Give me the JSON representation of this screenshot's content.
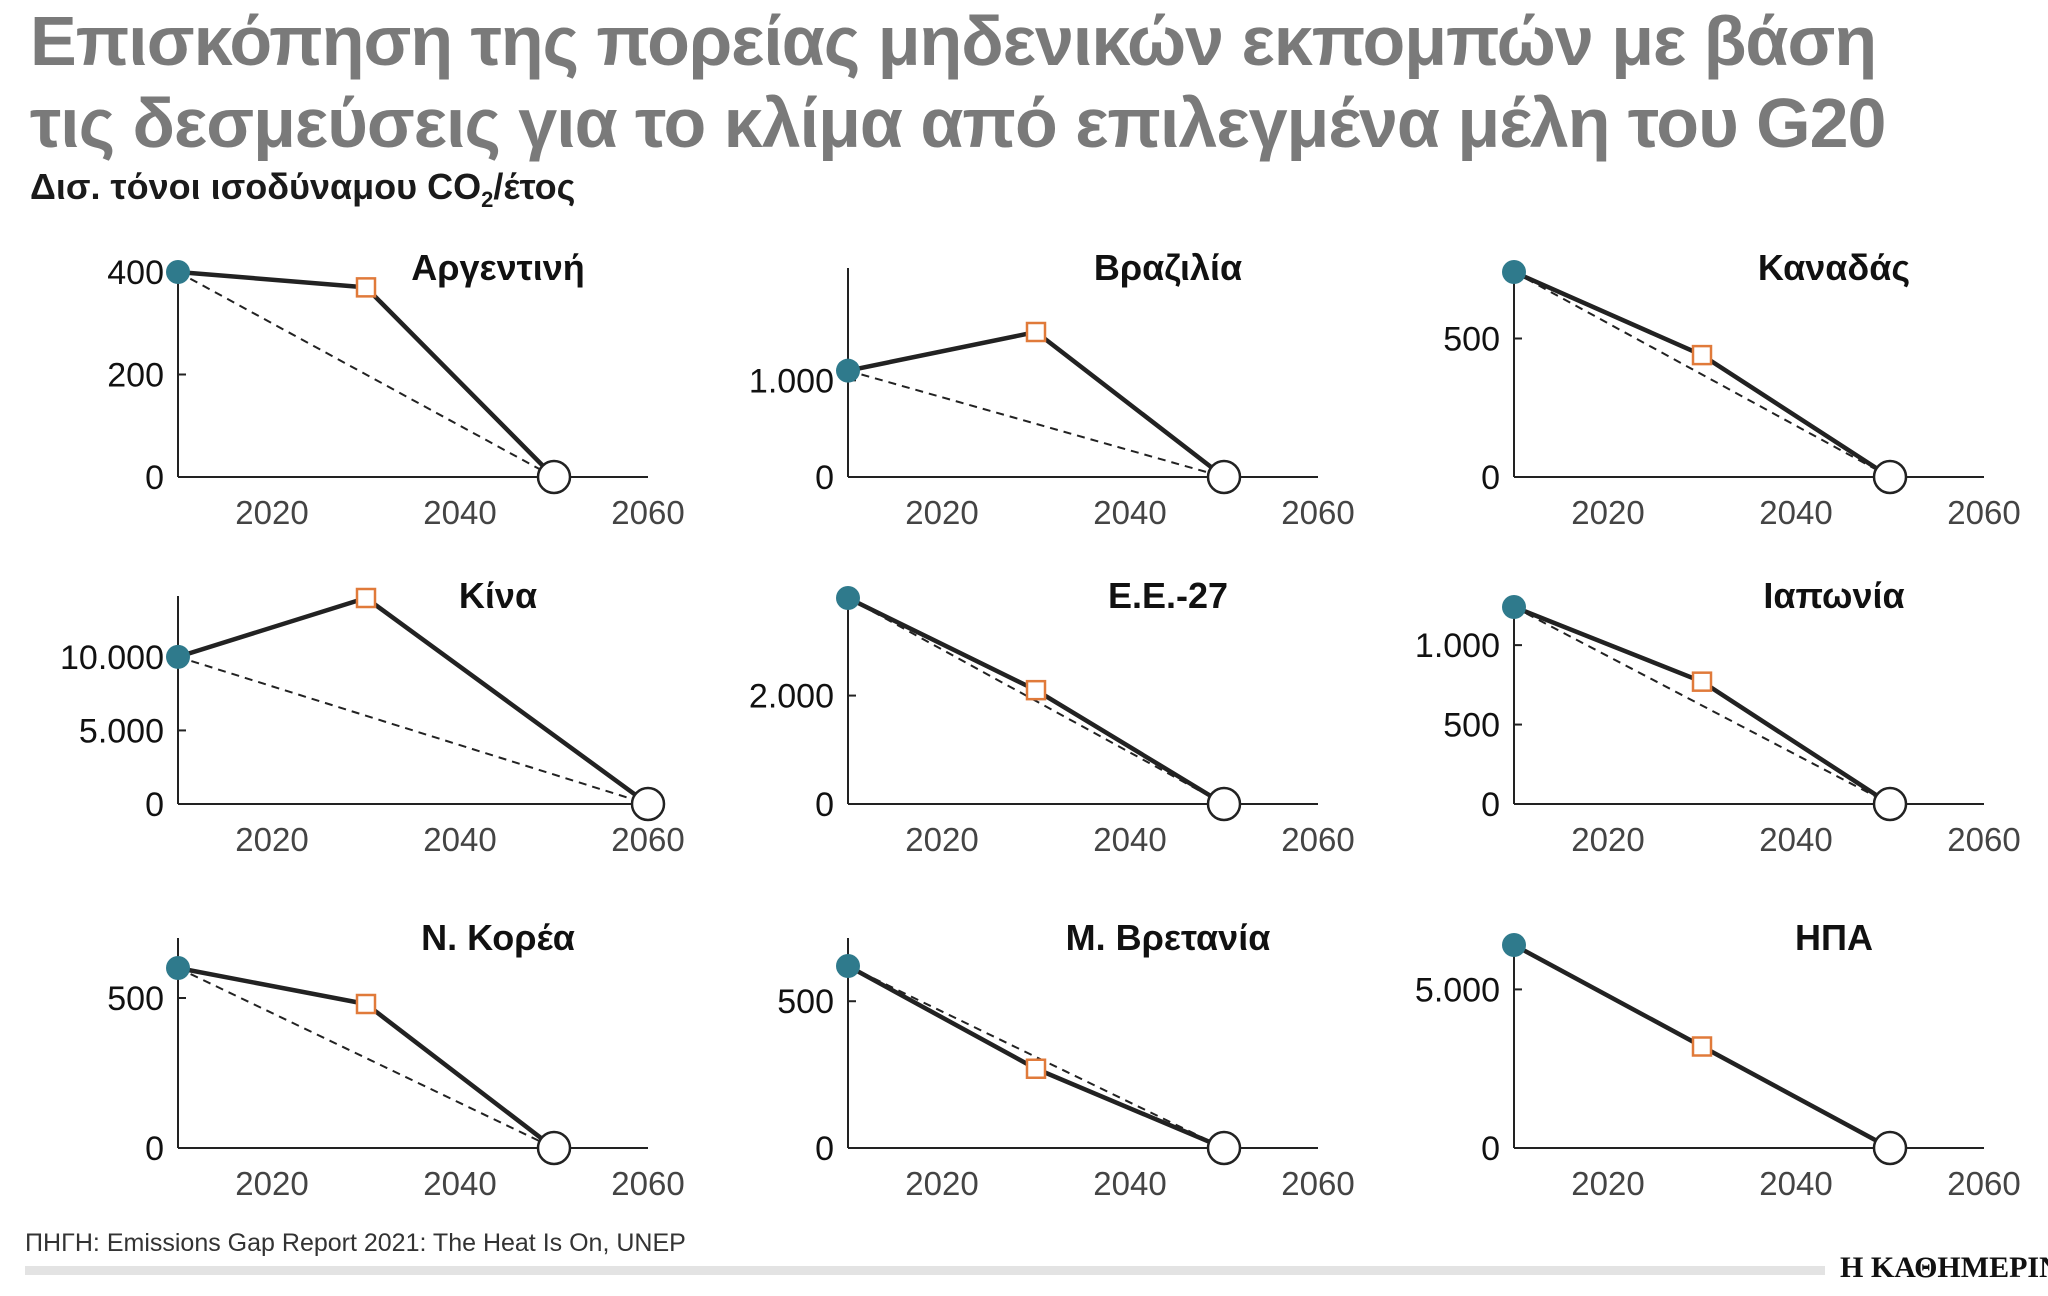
{
  "title_lines": [
    "Επισκόπηση της πορείας μηδενικών εκπομπών με βάση",
    "τις δεσμεύσεις για το κλίμα από επιλεγμένα μέλη του G20"
  ],
  "unit_label": {
    "before": "Δισ. τόνοι ισοδύναμου CO",
    "sub": "2",
    "after": "/έτος"
  },
  "source": "ΠΗΓΗ: Emissions Gap Report 2021: The Heat Is On, UNEP",
  "logo": "Η ΚΑΘΗΜΕΡΙΝΗ",
  "colors": {
    "start_marker": "#2f7a8c",
    "mid_marker": "#e07a3a",
    "line": "#222222",
    "axis": "#222222"
  },
  "chart_data": [
    {
      "type": "line",
      "title": "Αργεντινή",
      "xlim": [
        2010,
        2060
      ],
      "xticks": [
        "2020",
        "2040",
        "2060"
      ],
      "ylim": [
        0,
        400
      ],
      "yticks": [
        {
          "v": 0,
          "label": "0"
        },
        {
          "v": 200,
          "label": "200"
        },
        {
          "v": 400,
          "label": "400"
        }
      ],
      "series": [
        {
          "style": "solid",
          "x": [
            2010,
            2030,
            2050
          ],
          "y": [
            400,
            370,
            0
          ]
        },
        {
          "style": "dashed",
          "x": [
            2010,
            2050
          ],
          "y": [
            400,
            0
          ]
        }
      ]
    },
    {
      "type": "line",
      "title": "Βραζιλία",
      "xlim": [
        2010,
        2060
      ],
      "xticks": [
        "2020",
        "2040",
        "2060"
      ],
      "ylim": [
        0,
        1650
      ],
      "yticks": [
        {
          "v": 0,
          "label": "0"
        },
        {
          "v": 1000,
          "label": "1.000"
        }
      ],
      "series": [
        {
          "style": "solid",
          "x": [
            2010,
            2030,
            2050
          ],
          "y": [
            1100,
            1500,
            0
          ]
        },
        {
          "style": "dashed",
          "x": [
            2010,
            2050
          ],
          "y": [
            1100,
            0
          ]
        }
      ]
    },
    {
      "type": "line",
      "title": "Καναδάς",
      "xlim": [
        2010,
        2060
      ],
      "xticks": [
        "2020",
        "2040",
        "2060"
      ],
      "ylim": [
        0,
        750
      ],
      "yticks": [
        {
          "v": 0,
          "label": "0"
        },
        {
          "v": 500,
          "label": "500"
        }
      ],
      "series": [
        {
          "style": "solid",
          "x": [
            2010,
            2030,
            2050
          ],
          "y": [
            740,
            440,
            0
          ]
        },
        {
          "style": "dashed",
          "x": [
            2010,
            2050
          ],
          "y": [
            740,
            0
          ]
        }
      ]
    },
    {
      "type": "line",
      "title": "Κίνα",
      "xlim": [
        2010,
        2060
      ],
      "xticks": [
        "2020",
        "2040",
        "2060"
      ],
      "ylim": [
        0,
        14500
      ],
      "yticks": [
        {
          "v": 0,
          "label": "0"
        },
        {
          "v": 5000,
          "label": "5.000"
        },
        {
          "v": 10000,
          "label": "10.000"
        }
      ],
      "series": [
        {
          "style": "solid",
          "x": [
            2010,
            2030,
            2060
          ],
          "y": [
            10000,
            14000,
            0
          ]
        },
        {
          "style": "dashed",
          "x": [
            2010,
            2060
          ],
          "y": [
            10000,
            0
          ]
        }
      ]
    },
    {
      "type": "line",
      "title": "Ε.Ε.-27",
      "xlim": [
        2010,
        2060
      ],
      "xticks": [
        "2020",
        "2040",
        "2060"
      ],
      "ylim": [
        0,
        3800
      ],
      "yticks": [
        {
          "v": 0,
          "label": "0"
        },
        {
          "v": 2000,
          "label": "2.000"
        }
      ],
      "series": [
        {
          "style": "solid",
          "x": [
            2010,
            2030,
            2050
          ],
          "y": [
            3800,
            2100,
            0
          ]
        },
        {
          "style": "dashed",
          "x": [
            2010,
            2050
          ],
          "y": [
            3800,
            0
          ]
        }
      ]
    },
    {
      "type": "line",
      "title": "Ιαπωνία",
      "xlim": [
        2010,
        2060
      ],
      "xticks": [
        "2020",
        "2040",
        "2060"
      ],
      "ylim": [
        0,
        1250
      ],
      "yticks": [
        {
          "v": 0,
          "label": "0"
        },
        {
          "v": 500,
          "label": "500"
        },
        {
          "v": 1000,
          "label": "1.000"
        }
      ],
      "series": [
        {
          "style": "solid",
          "x": [
            2010,
            2030,
            2050
          ],
          "y": [
            1240,
            770,
            0
          ]
        },
        {
          "style": "dashed",
          "x": [
            2010,
            2050
          ],
          "y": [
            1240,
            0
          ]
        }
      ]
    },
    {
      "type": "line",
      "title": "Ν. Κορέα",
      "xlim": [
        2010,
        2060
      ],
      "xticks": [
        "2020",
        "2040",
        "2060"
      ],
      "ylim": [
        0,
        700
      ],
      "yticks": [
        {
          "v": 0,
          "label": "0"
        },
        {
          "v": 500,
          "label": "500"
        }
      ],
      "series": [
        {
          "style": "solid",
          "x": [
            2010,
            2030,
            2050
          ],
          "y": [
            600,
            480,
            0
          ]
        },
        {
          "style": "dashed",
          "x": [
            2010,
            2050
          ],
          "y": [
            600,
            0
          ]
        }
      ]
    },
    {
      "type": "line",
      "title": "Μ. Βρετανία",
      "xlim": [
        2010,
        2060
      ],
      "xticks": [
        "2020",
        "2040",
        "2060"
      ],
      "ylim": [
        0,
        700
      ],
      "yticks": [
        {
          "v": 0,
          "label": "0"
        },
        {
          "v": 500,
          "label": "500"
        }
      ],
      "series": [
        {
          "style": "solid",
          "x": [
            2010,
            2030,
            2050
          ],
          "y": [
            620,
            270,
            0
          ]
        },
        {
          "style": "dashed",
          "x": [
            2010,
            2050
          ],
          "y": [
            620,
            0
          ]
        }
      ]
    },
    {
      "type": "line",
      "title": "ΗΠΑ",
      "xlim": [
        2010,
        2060
      ],
      "xticks": [
        "2020",
        "2040",
        "2060"
      ],
      "ylim": [
        0,
        6500
      ],
      "yticks": [
        {
          "v": 0,
          "label": "0"
        },
        {
          "v": 5000,
          "label": "5.000"
        }
      ],
      "series": [
        {
          "style": "solid",
          "x": [
            2010,
            2030,
            2050
          ],
          "y": [
            6400,
            3200,
            0
          ]
        },
        {
          "style": "dashed",
          "x": [
            2010,
            2050
          ],
          "y": [
            6400,
            0
          ]
        }
      ]
    }
  ]
}
